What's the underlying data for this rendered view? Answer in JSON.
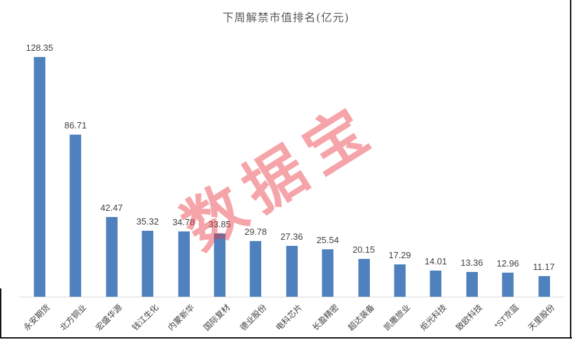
{
  "watermark": {
    "text": "数据宝",
    "color": "#E83840",
    "opacity": 0.45
  },
  "chart_data": {
    "type": "bar",
    "title": "下周解禁市值排名(亿元)",
    "categories": [
      "永安期货",
      "北方铜业",
      "宏盛华源",
      "钱江生化",
      "内蒙新华",
      "国际复材",
      "德业股份",
      "电科芯片",
      "长盈精密",
      "超达装备",
      "凯撒旅业",
      "炬光科技",
      "致欧科技",
      "*ST京蓝",
      "天里股份"
    ],
    "values": [
      128.35,
      86.71,
      42.47,
      35.32,
      34.78,
      33.85,
      29.78,
      27.36,
      25.54,
      20.15,
      17.29,
      14.01,
      13.36,
      12.96,
      11.17
    ],
    "xlabel": "",
    "ylabel": "",
    "ylim": [
      0,
      140
    ],
    "grid": false,
    "legend": false,
    "value_labels": true,
    "bar_color": "#4E81BD",
    "axis_line_color": "#D9D9D9",
    "title_color": "#595959",
    "label_color": "#404040"
  }
}
